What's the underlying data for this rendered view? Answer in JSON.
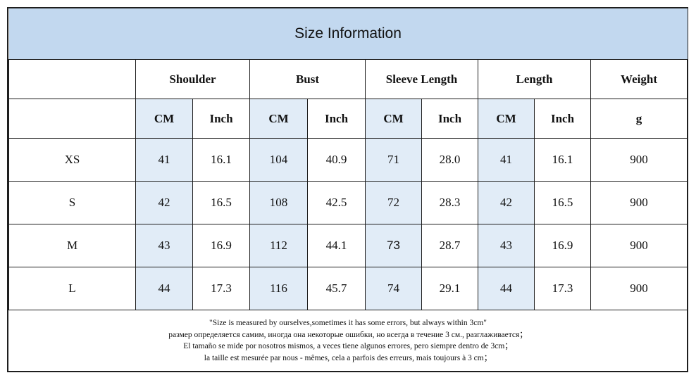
{
  "title": "Size Information",
  "headers": [
    "Shoulder",
    "Bust",
    "Sleeve Length",
    "Length",
    "Weight"
  ],
  "units": [
    "CM",
    "Inch",
    "CM",
    "Inch",
    "CM",
    "Inch",
    "CM",
    "Inch",
    "g"
  ],
  "rows": [
    {
      "size": "XS",
      "values": [
        "41",
        "16.1",
        "104",
        "40.9",
        "71",
        "28.0",
        "41",
        "16.1",
        "900"
      ]
    },
    {
      "size": "S",
      "values": [
        "42",
        "16.5",
        "108",
        "42.5",
        "72",
        "28.3",
        "42",
        "16.5",
        "900"
      ]
    },
    {
      "size": "M",
      "values": [
        "43",
        "16.9",
        "112",
        "44.1",
        "73",
        "28.7",
        "43",
        "16.9",
        "900"
      ]
    },
    {
      "size": "L",
      "values": [
        "44",
        "17.3",
        "116",
        "45.7",
        "74",
        "29.1",
        "44",
        "17.3",
        "900"
      ]
    }
  ],
  "notes": [
    "\"Size is measured by ourselves,sometimes it has some errors, but always within 3cm\"",
    "размер определяется самим, иногда она некоторые ошибки, но всегда в течение 3 см., разглаживается；",
    "El tamaño se mide por nosotros mismos, a veces tiene algunos errores, pero siempre dentro de 3cm；",
    "la taille est mesurée par nous - mêmes, cela a parfois des erreurs, mais toujours à 3 cm；"
  ]
}
